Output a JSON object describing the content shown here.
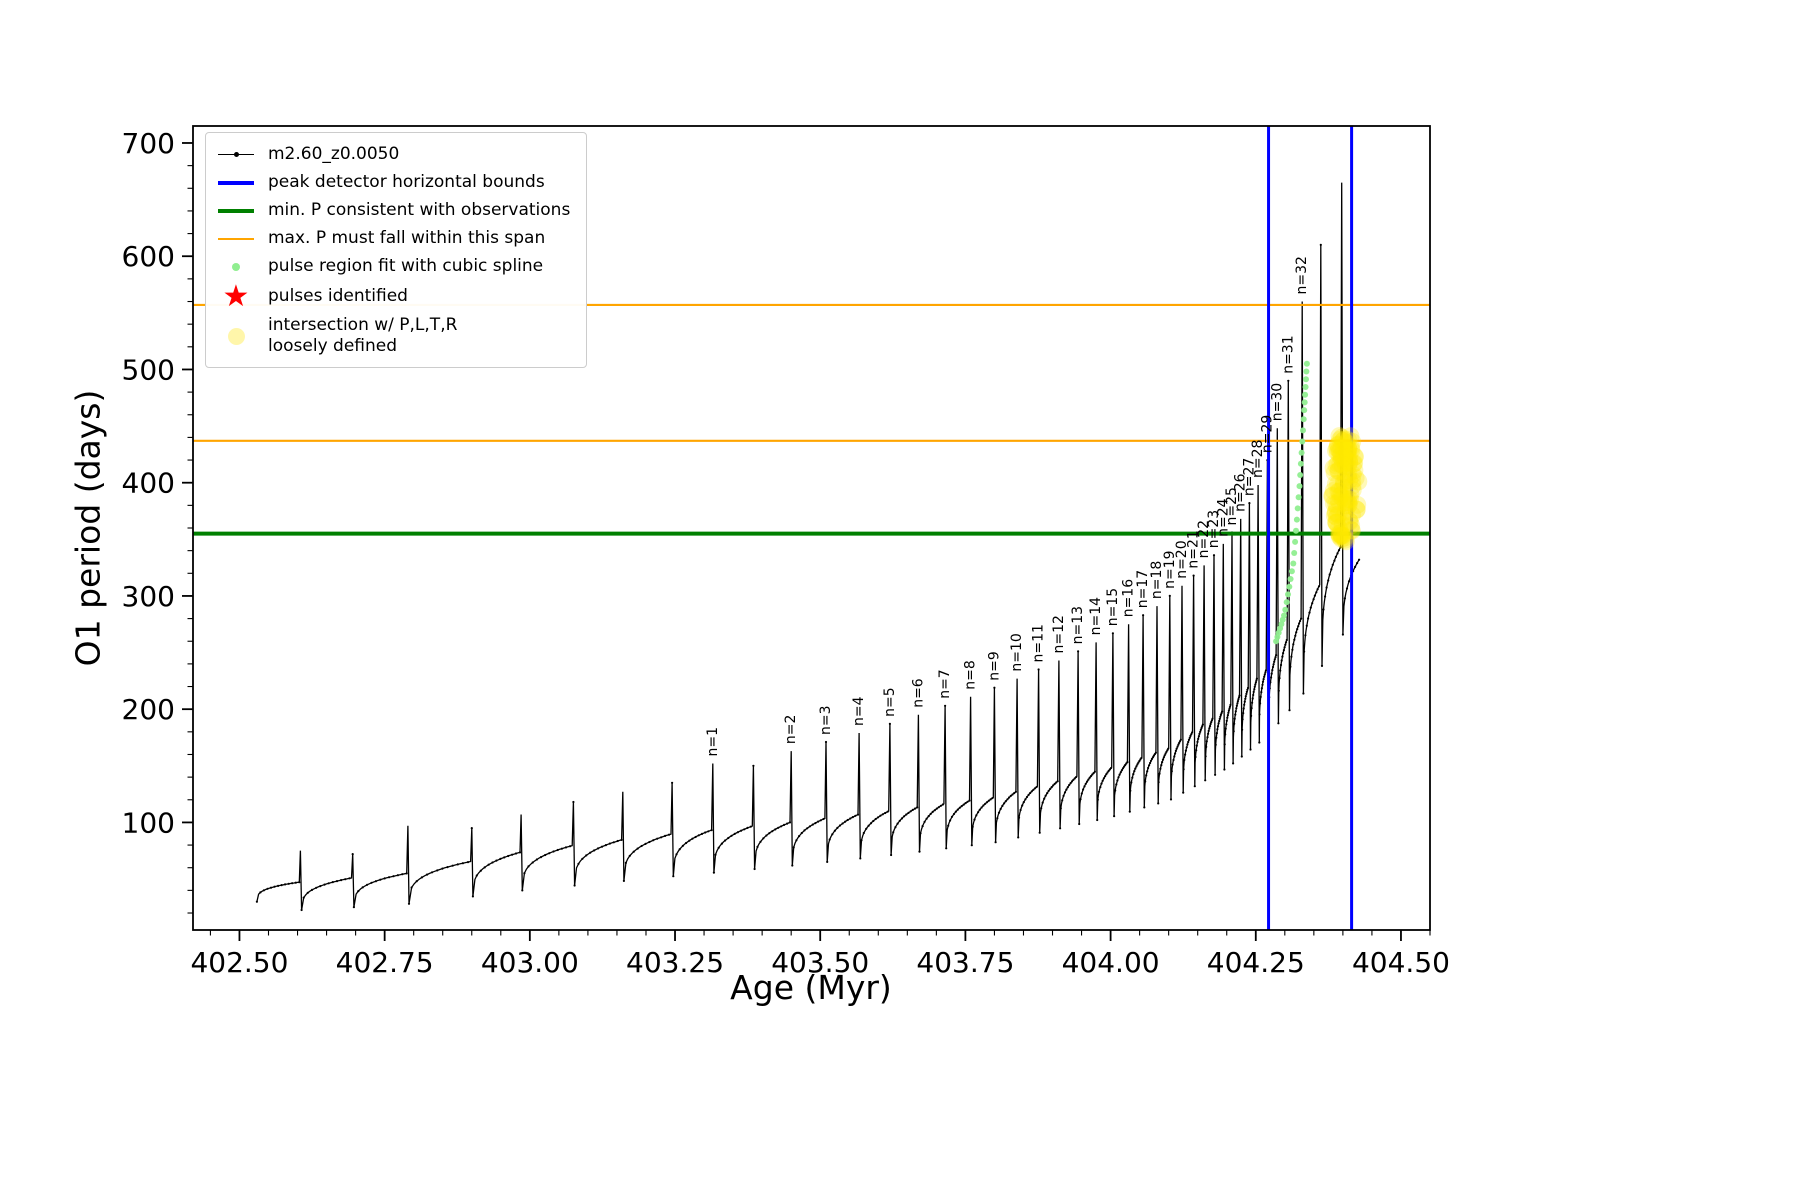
{
  "figure": {
    "background": "#ffffff"
  },
  "chart_data": {
    "type": "line",
    "title": "",
    "xlabel": "Age (Myr)",
    "ylabel": "O1 period (days)",
    "xlim": [
      402.42,
      404.55
    ],
    "ylim": [
      5,
      715
    ],
    "grid": false,
    "legend_position": "upper left",
    "x_ticks": [
      {
        "v": 402.5,
        "label": "402.50"
      },
      {
        "v": 402.75,
        "label": "402.75"
      },
      {
        "v": 403.0,
        "label": "403.00"
      },
      {
        "v": 403.25,
        "label": "403.25"
      },
      {
        "v": 403.5,
        "label": "403.50"
      },
      {
        "v": 403.75,
        "label": "403.75"
      },
      {
        "v": 404.0,
        "label": "404.00"
      },
      {
        "v": 404.25,
        "label": "404.25"
      },
      {
        "v": 404.5,
        "label": "404.50"
      }
    ],
    "y_ticks": [
      {
        "v": 100,
        "label": "100"
      },
      {
        "v": 200,
        "label": "200"
      },
      {
        "v": 300,
        "label": "300"
      },
      {
        "v": 400,
        "label": "400"
      },
      {
        "v": 500,
        "label": "500"
      },
      {
        "v": 600,
        "label": "600"
      },
      {
        "v": 700,
        "label": "700"
      }
    ],
    "x_minor_step": 0.05,
    "y_minor_step": 20,
    "series_name": "m2.60_z0.0050",
    "series_color": "#000000",
    "series_start": {
      "x": 402.53,
      "y": 30
    },
    "series_end": {
      "x": 404.428,
      "y": 332
    },
    "baseline_anchors": [
      [
        402.53,
        30
      ],
      [
        402.6,
        47
      ],
      [
        402.79,
        55
      ],
      [
        403.0,
        75
      ],
      [
        403.25,
        90
      ],
      [
        403.45,
        100
      ],
      [
        403.62,
        110
      ],
      [
        403.8,
        122
      ],
      [
        404.0,
        148
      ],
      [
        404.1,
        165
      ],
      [
        404.2,
        200
      ],
      [
        404.27,
        235
      ],
      [
        404.33,
        280
      ],
      [
        404.4,
        345
      ],
      [
        404.428,
        332
      ]
    ],
    "dip_fraction": [
      0.45,
      0.8
    ],
    "pulses": [
      {
        "x": 402.605,
        "peak": 75
      },
      {
        "x": 402.695,
        "peak": 72
      },
      {
        "x": 402.79,
        "peak": 97
      },
      {
        "x": 402.9,
        "peak": 95
      },
      {
        "x": 402.985,
        "peak": 107
      },
      {
        "x": 403.075,
        "peak": 118
      },
      {
        "x": 403.16,
        "peak": 127
      },
      {
        "x": 403.245,
        "peak": 135
      },
      {
        "x": 403.315,
        "peak": 152,
        "label": "n=1"
      },
      {
        "x": 403.385,
        "peak": 150
      },
      {
        "x": 403.45,
        "peak": 163,
        "label": "n=2"
      },
      {
        "x": 403.51,
        "peak": 171,
        "label": "n=3"
      },
      {
        "x": 403.567,
        "peak": 179,
        "label": "n=4"
      },
      {
        "x": 403.62,
        "peak": 187,
        "label": "n=5"
      },
      {
        "x": 403.669,
        "peak": 195,
        "label": "n=6"
      },
      {
        "x": 403.715,
        "peak": 203,
        "label": "n=7"
      },
      {
        "x": 403.759,
        "peak": 211,
        "label": "n=8"
      },
      {
        "x": 403.8,
        "peak": 219,
        "label": "n=9"
      },
      {
        "x": 403.839,
        "peak": 227,
        "label": "n=10"
      },
      {
        "x": 403.876,
        "peak": 235,
        "label": "n=11"
      },
      {
        "x": 403.911,
        "peak": 243,
        "label": "n=12"
      },
      {
        "x": 403.944,
        "peak": 251,
        "label": "n=13"
      },
      {
        "x": 403.975,
        "peak": 259,
        "label": "n=14"
      },
      {
        "x": 404.004,
        "peak": 267,
        "label": "n=15"
      },
      {
        "x": 404.031,
        "peak": 275,
        "label": "n=16"
      },
      {
        "x": 404.056,
        "peak": 283,
        "label": "n=17"
      },
      {
        "x": 404.08,
        "peak": 291,
        "label": "n=18"
      },
      {
        "x": 404.102,
        "peak": 300,
        "label": "n=19"
      },
      {
        "x": 404.123,
        "peak": 309,
        "label": "n=20"
      },
      {
        "x": 404.143,
        "peak": 318,
        "label": "n=21"
      },
      {
        "x": 404.161,
        "peak": 327,
        "label": "n=22"
      },
      {
        "x": 404.178,
        "peak": 336,
        "label": "n=23"
      },
      {
        "x": 404.194,
        "peak": 346,
        "label": "n=24"
      },
      {
        "x": 404.209,
        "peak": 356,
        "label": "n=25"
      },
      {
        "x": 404.224,
        "peak": 368,
        "label": "n=26"
      },
      {
        "x": 404.239,
        "peak": 382,
        "label": "n=27"
      },
      {
        "x": 404.254,
        "peak": 398,
        "label": "n=28"
      },
      {
        "x": 404.27,
        "peak": 420,
        "label": "n=29"
      },
      {
        "x": 404.287,
        "peak": 448,
        "label": "n=30"
      },
      {
        "x": 404.306,
        "peak": 490,
        "label": "n=31"
      },
      {
        "x": 404.33,
        "peak": 560,
        "label": "n=32"
      },
      {
        "x": 404.362,
        "peak": 610
      },
      {
        "x": 404.398,
        "peak": 665
      }
    ],
    "horizontal_lines": [
      {
        "y": 355,
        "color": "#008000",
        "width": 4,
        "name": "min-p-observations-line"
      },
      {
        "y": 437,
        "color": "#FFA500",
        "width": 2.2,
        "name": "max-p-span-lower-line"
      },
      {
        "y": 557,
        "color": "#FFA500",
        "width": 2.2,
        "name": "max-p-span-upper-line"
      }
    ],
    "vertical_lines": [
      {
        "x": 404.272,
        "color": "#0000FF",
        "width": 3,
        "name": "peak-detector-left-bound"
      },
      {
        "x": 404.415,
        "color": "#0000FF",
        "width": 3,
        "name": "peak-detector-right-bound"
      }
    ],
    "spline_fit": {
      "color": "#90EE90",
      "dot_radius": 3,
      "points_anchors": [
        [
          404.285,
          260
        ],
        [
          404.3,
          285
        ],
        [
          404.315,
          330
        ],
        [
          404.325,
          395
        ],
        [
          404.333,
          460
        ],
        [
          404.338,
          505
        ]
      ],
      "n_dots": 34
    },
    "intersection_region": {
      "x_center": 404.404,
      "x_halfwidth": 0.023,
      "y_min": 348,
      "y_max": 446,
      "color": "#FFE900",
      "marker_radius": 9,
      "marker_count": 120,
      "opacity": 0.28
    },
    "legend": [
      {
        "label": "m2.60_z0.0050",
        "marker": "line-dot",
        "color": "#000000",
        "lw": 1.5,
        "icon_name": "series-line-dot-icon"
      },
      {
        "label": "peak detector horizontal bounds",
        "marker": "thick-line",
        "color": "#0000FF",
        "lw": 4,
        "icon_name": "blue-line-icon"
      },
      {
        "label": "min. P consistent with observations",
        "marker": "thick-line",
        "color": "#008000",
        "lw": 4,
        "icon_name": "green-line-icon"
      },
      {
        "label": "max. P must fall within this span",
        "marker": "thick-line",
        "color": "#FFA500",
        "lw": 2,
        "icon_name": "orange-line-icon"
      },
      {
        "label": "pulse region fit with cubic spline",
        "marker": "dot",
        "color": "#90EE90",
        "lw": 0,
        "icon_name": "green-dot-icon"
      },
      {
        "label": "pulses identified",
        "marker": "star",
        "color": "#FF0000",
        "lw": 0,
        "icon_name": "red-star-icon"
      },
      {
        "label": "intersection w/ P,L,T,R\nloosely defined",
        "marker": "circle",
        "color": "#FFF59B",
        "lw": 0,
        "icon_name": "yellow-circle-icon"
      }
    ]
  }
}
